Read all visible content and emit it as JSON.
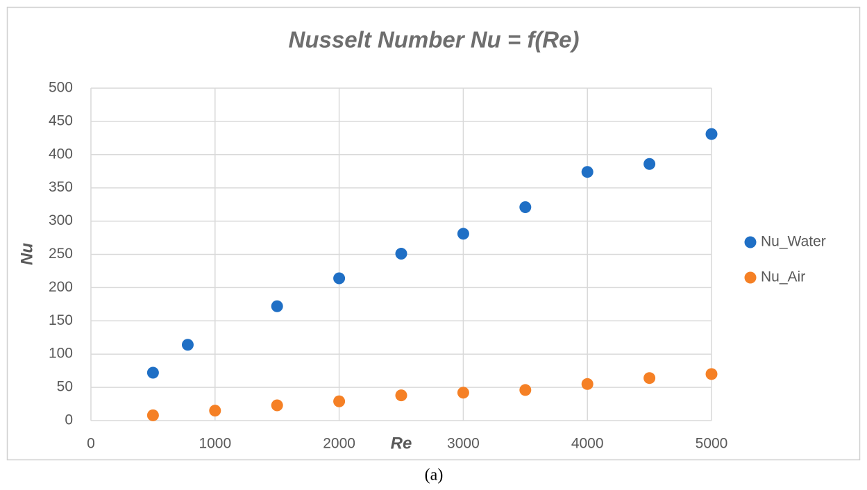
{
  "chart_data": {
    "type": "scatter",
    "title": "Nusselt Number Nu = f(Re)",
    "x_label": "Re",
    "y_label": "Nu",
    "caption": "(a)",
    "series": [
      {
        "name": "Nu_Water",
        "color": "#1f6fc5",
        "x": [
          500,
          780,
          1500,
          2000,
          2500,
          3000,
          3500,
          4000,
          4500,
          5000
        ],
        "values": [
          72,
          114,
          172,
          214,
          251,
          281,
          321,
          374,
          386,
          431
        ]
      },
      {
        "name": "Nu_Air",
        "color": "#f58025",
        "x": [
          500,
          1000,
          1500,
          2000,
          2500,
          3000,
          3500,
          4000,
          4500,
          5000
        ],
        "values": [
          8,
          15,
          23,
          29,
          38,
          42,
          46,
          55,
          64,
          70
        ]
      }
    ],
    "xlim": [
      0,
      5000
    ],
    "xticks": [
      0,
      1000,
      2000,
      3000,
      4000,
      5000
    ],
    "ylim": [
      0,
      500
    ],
    "yticks": [
      0,
      50,
      100,
      150,
      200,
      250,
      300,
      350,
      400,
      450,
      500
    ],
    "grid": true,
    "legend": "right"
  }
}
